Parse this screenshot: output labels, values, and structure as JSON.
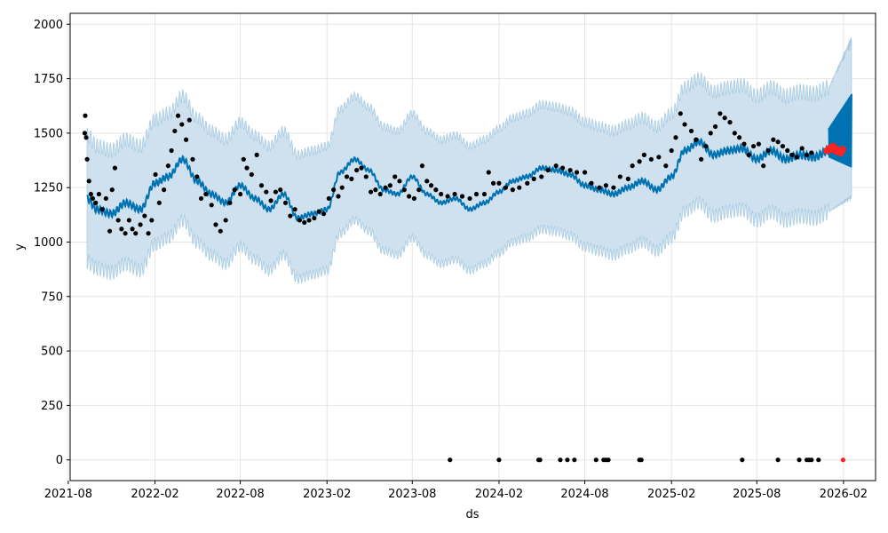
{
  "chart_data": {
    "type": "scatter",
    "title": "",
    "xlabel": "ds",
    "ylabel": "y",
    "xlim": [
      "2021-08-05",
      "2026-04-10"
    ],
    "ylim": [
      -95,
      2050
    ],
    "grid": true,
    "x_ticks": [
      "2021-08",
      "2022-02",
      "2022-08",
      "2023-02",
      "2023-08",
      "2024-02",
      "2024-08",
      "2025-02",
      "2025-08",
      "2026-02"
    ],
    "y_ticks": [
      0,
      250,
      500,
      750,
      1000,
      1250,
      1500,
      1750,
      2000
    ],
    "colors": {
      "observed": "#000000",
      "forecast_line": "#0072B2",
      "interval_fill": "#cfe1ef",
      "interval_edge": "#a9cce3",
      "highlight": "#ff2222"
    },
    "forecast": {
      "dates": [
        "2021-09-10",
        "2021-10-01",
        "2021-11-01",
        "2021-12-01",
        "2022-01-01",
        "2022-02-01",
        "2022-03-01",
        "2022-04-01",
        "2022-05-01",
        "2022-06-01",
        "2022-07-01",
        "2022-08-01",
        "2022-09-01",
        "2022-10-01",
        "2022-11-01",
        "2022-12-01",
        "2023-01-01",
        "2023-02-01",
        "2023-03-01",
        "2023-04-01",
        "2023-05-01",
        "2023-06-01",
        "2023-07-01",
        "2023-08-01",
        "2023-09-01",
        "2023-10-01",
        "2023-11-01",
        "2023-12-01",
        "2024-01-01",
        "2024-02-01",
        "2024-03-01",
        "2024-04-01",
        "2024-05-01",
        "2024-06-01",
        "2024-07-01",
        "2024-08-01",
        "2024-09-01",
        "2024-10-01",
        "2024-11-01",
        "2024-12-01",
        "2025-01-01",
        "2025-02-01",
        "2025-03-01",
        "2025-04-01",
        "2025-05-01",
        "2025-06-01",
        "2025-07-01",
        "2025-08-01",
        "2025-09-01",
        "2025-10-01",
        "2025-11-01",
        "2025-12-01",
        "2026-01-01",
        "2026-02-01",
        "2026-02-18"
      ],
      "yhat": [
        1200,
        1150,
        1130,
        1180,
        1150,
        1270,
        1300,
        1380,
        1280,
        1220,
        1180,
        1260,
        1200,
        1150,
        1220,
        1110,
        1130,
        1150,
        1320,
        1380,
        1330,
        1240,
        1220,
        1300,
        1220,
        1180,
        1200,
        1150,
        1180,
        1230,
        1280,
        1300,
        1340,
        1330,
        1310,
        1260,
        1240,
        1220,
        1250,
        1280,
        1240,
        1300,
        1420,
        1460,
        1400,
        1420,
        1430,
        1380,
        1420,
        1380,
        1400,
        1390,
        1420,
        1420,
        1420
      ],
      "lower": [
        910,
        880,
        860,
        900,
        870,
        990,
        1020,
        1100,
        1000,
        940,
        900,
        980,
        920,
        870,
        940,
        830,
        850,
        870,
        1040,
        1100,
        1050,
        960,
        940,
        1020,
        940,
        900,
        920,
        870,
        900,
        950,
        1000,
        1020,
        1060,
        1050,
        1030,
        980,
        960,
        940,
        970,
        1000,
        960,
        1020,
        1140,
        1180,
        1120,
        1140,
        1150,
        1100,
        1140,
        1100,
        1120,
        1110,
        1140,
        1140,
        1140
      ],
      "upper": [
        1490,
        1440,
        1420,
        1470,
        1440,
        1560,
        1590,
        1670,
        1570,
        1510,
        1470,
        1550,
        1490,
        1440,
        1510,
        1400,
        1420,
        1440,
        1610,
        1670,
        1620,
        1530,
        1510,
        1590,
        1510,
        1470,
        1490,
        1440,
        1470,
        1520,
        1570,
        1590,
        1630,
        1620,
        1600,
        1550,
        1530,
        1510,
        1540,
        1570,
        1530,
        1590,
        1710,
        1750,
        1690,
        1710,
        1720,
        1670,
        1710,
        1670,
        1690,
        1680,
        1710,
        1710,
        1710
      ],
      "future_upper_max": 1950,
      "future_lower_min": 1220,
      "future_spike_max": 1680
    },
    "observed_points": [
      [
        "2021-09-05",
        1500
      ],
      [
        "2021-09-06",
        1580
      ],
      [
        "2021-09-08",
        1480
      ],
      [
        "2021-09-10",
        1380
      ],
      [
        "2021-09-14",
        1280
      ],
      [
        "2021-09-18",
        1220
      ],
      [
        "2021-09-22",
        1200
      ],
      [
        "2021-09-28",
        1180
      ],
      [
        "2021-10-05",
        1220
      ],
      [
        "2021-10-12",
        1150
      ],
      [
        "2021-10-20",
        1200
      ],
      [
        "2021-10-28",
        1050
      ],
      [
        "2021-11-02",
        1240
      ],
      [
        "2021-11-08",
        1340
      ],
      [
        "2021-11-15",
        1100
      ],
      [
        "2021-11-22",
        1060
      ],
      [
        "2021-11-30",
        1040
      ],
      [
        "2021-12-08",
        1100
      ],
      [
        "2021-12-15",
        1060
      ],
      [
        "2021-12-22",
        1040
      ],
      [
        "2022-01-01",
        1080
      ],
      [
        "2022-01-10",
        1120
      ],
      [
        "2022-01-18",
        1040
      ],
      [
        "2022-01-25",
        1100
      ],
      [
        "2022-02-02",
        1310
      ],
      [
        "2022-02-10",
        1180
      ],
      [
        "2022-02-20",
        1240
      ],
      [
        "2022-03-01",
        1350
      ],
      [
        "2022-03-08",
        1420
      ],
      [
        "2022-03-15",
        1510
      ],
      [
        "2022-03-22",
        1580
      ],
      [
        "2022-03-30",
        1540
      ],
      [
        "2022-04-08",
        1470
      ],
      [
        "2022-04-15",
        1560
      ],
      [
        "2022-04-22",
        1380
      ],
      [
        "2022-05-01",
        1300
      ],
      [
        "2022-05-10",
        1200
      ],
      [
        "2022-05-20",
        1220
      ],
      [
        "2022-06-01",
        1170
      ],
      [
        "2022-06-10",
        1080
      ],
      [
        "2022-06-20",
        1050
      ],
      [
        "2022-07-01",
        1100
      ],
      [
        "2022-07-10",
        1180
      ],
      [
        "2022-07-20",
        1240
      ],
      [
        "2022-08-01",
        1220
      ],
      [
        "2022-08-08",
        1380
      ],
      [
        "2022-08-15",
        1340
      ],
      [
        "2022-08-25",
        1310
      ],
      [
        "2022-09-05",
        1400
      ],
      [
        "2022-09-15",
        1260
      ],
      [
        "2022-09-25",
        1230
      ],
      [
        "2022-10-05",
        1190
      ],
      [
        "2022-10-15",
        1230
      ],
      [
        "2022-10-25",
        1240
      ],
      [
        "2022-11-05",
        1180
      ],
      [
        "2022-11-15",
        1120
      ],
      [
        "2022-11-25",
        1150
      ],
      [
        "2022-12-05",
        1100
      ],
      [
        "2022-12-15",
        1090
      ],
      [
        "2022-12-25",
        1100
      ],
      [
        "2023-01-05",
        1110
      ],
      [
        "2023-01-15",
        1140
      ],
      [
        "2023-01-25",
        1130
      ],
      [
        "2023-02-05",
        1200
      ],
      [
        "2023-02-15",
        1240
      ],
      [
        "2023-02-25",
        1210
      ],
      [
        "2023-03-05",
        1250
      ],
      [
        "2023-03-15",
        1300
      ],
      [
        "2023-03-25",
        1290
      ],
      [
        "2023-04-05",
        1330
      ],
      [
        "2023-04-15",
        1340
      ],
      [
        "2023-04-25",
        1300
      ],
      [
        "2023-05-05",
        1230
      ],
      [
        "2023-05-15",
        1240
      ],
      [
        "2023-05-25",
        1220
      ],
      [
        "2023-06-05",
        1250
      ],
      [
        "2023-06-15",
        1260
      ],
      [
        "2023-06-25",
        1300
      ],
      [
        "2023-07-05",
        1280
      ],
      [
        "2023-07-15",
        1240
      ],
      [
        "2023-07-25",
        1210
      ],
      [
        "2023-08-05",
        1200
      ],
      [
        "2023-08-15",
        1240
      ],
      [
        "2023-08-22",
        1350
      ],
      [
        "2023-09-01",
        1280
      ],
      [
        "2023-09-10",
        1260
      ],
      [
        "2023-09-20",
        1240
      ],
      [
        "2023-10-01",
        1220
      ],
      [
        "2023-10-15",
        1210
      ],
      [
        "2023-10-30",
        1220
      ],
      [
        "2023-11-15",
        1210
      ],
      [
        "2023-12-01",
        1200
      ],
      [
        "2023-12-15",
        1220
      ],
      [
        "2024-01-01",
        1220
      ],
      [
        "2024-01-10",
        1320
      ],
      [
        "2024-01-20",
        1270
      ],
      [
        "2024-02-01",
        1270
      ],
      [
        "2024-02-15",
        1250
      ],
      [
        "2024-03-01",
        1240
      ],
      [
        "2024-03-15",
        1250
      ],
      [
        "2024-04-01",
        1270
      ],
      [
        "2024-04-15",
        1290
      ],
      [
        "2024-05-01",
        1300
      ],
      [
        "2024-05-15",
        1330
      ],
      [
        "2024-06-01",
        1350
      ],
      [
        "2024-06-15",
        1340
      ],
      [
        "2024-07-01",
        1330
      ],
      [
        "2024-07-15",
        1320
      ],
      [
        "2024-08-01",
        1320
      ],
      [
        "2024-08-15",
        1270
      ],
      [
        "2024-09-01",
        1250
      ],
      [
        "2024-09-15",
        1260
      ],
      [
        "2024-10-01",
        1250
      ],
      [
        "2024-10-15",
        1300
      ],
      [
        "2024-11-01",
        1290
      ],
      [
        "2024-11-10",
        1350
      ],
      [
        "2024-11-25",
        1370
      ],
      [
        "2024-12-05",
        1400
      ],
      [
        "2024-12-20",
        1380
      ],
      [
        "2025-01-05",
        1390
      ],
      [
        "2025-01-20",
        1350
      ],
      [
        "2025-02-01",
        1420
      ],
      [
        "2025-02-10",
        1480
      ],
      [
        "2025-02-20",
        1590
      ],
      [
        "2025-03-01",
        1540
      ],
      [
        "2025-03-15",
        1510
      ],
      [
        "2025-03-25",
        1470
      ],
      [
        "2025-04-05",
        1380
      ],
      [
        "2025-04-15",
        1440
      ],
      [
        "2025-04-25",
        1500
      ],
      [
        "2025-05-05",
        1530
      ],
      [
        "2025-05-15",
        1590
      ],
      [
        "2025-05-25",
        1570
      ],
      [
        "2025-06-05",
        1550
      ],
      [
        "2025-06-15",
        1500
      ],
      [
        "2025-06-25",
        1480
      ],
      [
        "2025-07-05",
        1450
      ],
      [
        "2025-07-15",
        1400
      ],
      [
        "2025-07-25",
        1440
      ],
      [
        "2025-08-05",
        1450
      ],
      [
        "2025-08-15",
        1350
      ],
      [
        "2025-08-25",
        1420
      ],
      [
        "2025-09-05",
        1470
      ],
      [
        "2025-09-15",
        1460
      ],
      [
        "2025-09-25",
        1440
      ],
      [
        "2025-10-05",
        1420
      ],
      [
        "2025-10-15",
        1400
      ],
      [
        "2025-10-25",
        1390
      ],
      [
        "2025-11-05",
        1430
      ],
      [
        "2025-11-15",
        1400
      ],
      [
        "2025-11-25",
        1410
      ],
      [
        "2023-10-20",
        0
      ],
      [
        "2024-02-01",
        0
      ],
      [
        "2024-04-25",
        0
      ],
      [
        "2024-04-28",
        0
      ],
      [
        "2024-06-10",
        0
      ],
      [
        "2024-06-25",
        0
      ],
      [
        "2024-07-10",
        0
      ],
      [
        "2024-08-25",
        0
      ],
      [
        "2024-09-10",
        0
      ],
      [
        "2024-09-15",
        0
      ],
      [
        "2024-09-20",
        0
      ],
      [
        "2024-11-25",
        0
      ],
      [
        "2024-11-29",
        0
      ],
      [
        "2025-07-01",
        0
      ],
      [
        "2025-09-15",
        0
      ],
      [
        "2025-10-30",
        0
      ],
      [
        "2025-11-15",
        0
      ],
      [
        "2025-11-20",
        0
      ],
      [
        "2025-11-25",
        0
      ],
      [
        "2025-12-10",
        0
      ]
    ],
    "highlighted_points": [
      [
        "2025-12-28",
        1420
      ],
      [
        "2026-01-02",
        1430
      ],
      [
        "2026-01-06",
        1425
      ],
      [
        "2026-01-10",
        1440
      ],
      [
        "2026-01-14",
        1430
      ],
      [
        "2026-01-18",
        1415
      ],
      [
        "2026-01-22",
        1420
      ],
      [
        "2026-01-26",
        1410
      ],
      [
        "2026-01-30",
        1425
      ],
      [
        "2026-01-31",
        0
      ]
    ]
  }
}
